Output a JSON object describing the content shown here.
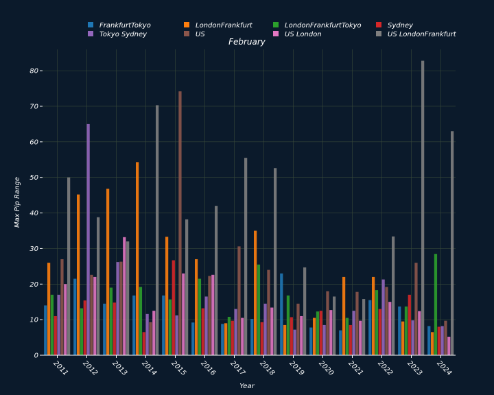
{
  "colors": {
    "background": "#0b1a2b",
    "grid": "#3a4a3a",
    "text": "#ffffff",
    "axis": "#ffffff"
  },
  "chart_data": {
    "type": "bar",
    "title": "February",
    "xlabel": "Year",
    "ylabel": "Max Pip Range",
    "ylim": [
      0,
      86
    ],
    "yticks": [
      0,
      10,
      20,
      30,
      40,
      50,
      60,
      70,
      80
    ],
    "grid": true,
    "legend_position": "top",
    "categories": [
      "2011",
      "2012",
      "2013",
      "2014",
      "2015",
      "2016",
      "2017",
      "2018",
      "2019",
      "2020",
      "2021",
      "2022",
      "2023",
      "2024"
    ],
    "series": [
      {
        "name": "FrankfurtTokyo",
        "color": "#1f77b4",
        "values": [
          14.0,
          21.5,
          14.5,
          16.8,
          16.8,
          9.2,
          8.8,
          10.2,
          23.0,
          7.8,
          7.0,
          15.5,
          13.7,
          8.2
        ]
      },
      {
        "name": "LondonFrankfurt",
        "color": "#ff7f0e",
        "values": [
          26.0,
          45.2,
          46.8,
          54.3,
          33.3,
          27.0,
          9.0,
          35.0,
          8.5,
          10.5,
          22.0,
          22.0,
          9.5,
          6.5
        ]
      },
      {
        "name": "LondonFrankfurtTokyo",
        "color": "#2ca02c",
        "values": [
          17.0,
          13.2,
          19.0,
          19.2,
          15.7,
          21.5,
          10.8,
          25.5,
          16.8,
          12.3,
          10.5,
          18.3,
          13.7,
          28.5
        ]
      },
      {
        "name": "Sydney",
        "color": "#d62728",
        "values": [
          11.0,
          15.4,
          14.8,
          6.5,
          26.7,
          13.2,
          9.7,
          9.3,
          10.7,
          12.5,
          8.5,
          13.0,
          17.0,
          8.0
        ]
      },
      {
        "name": "Tokyo Sydney",
        "color": "#9467bd",
        "values": [
          17.0,
          65.0,
          26.2,
          11.6,
          11.2,
          16.5,
          13.0,
          14.5,
          7.2,
          8.5,
          12.5,
          21.3,
          9.8,
          8.2
        ]
      },
      {
        "name": "US",
        "color": "#8c564b",
        "values": [
          27.0,
          22.6,
          26.3,
          9.3,
          74.2,
          22.3,
          30.6,
          24.0,
          14.5,
          18.0,
          17.8,
          19.2,
          26.0,
          9.7
        ]
      },
      {
        "name": "US London",
        "color": "#e377c2",
        "values": [
          20.0,
          22.0,
          33.2,
          12.5,
          23.0,
          22.6,
          10.5,
          13.4,
          11.0,
          12.7,
          9.7,
          15.0,
          12.4,
          5.2
        ]
      },
      {
        "name": "US LondonFrankfurt",
        "color": "#7f7f7f",
        "values": [
          50.0,
          38.8,
          32.0,
          70.3,
          38.2,
          42.0,
          55.5,
          52.6,
          24.7,
          16.5,
          15.8,
          33.4,
          82.8,
          63.0
        ]
      }
    ]
  }
}
